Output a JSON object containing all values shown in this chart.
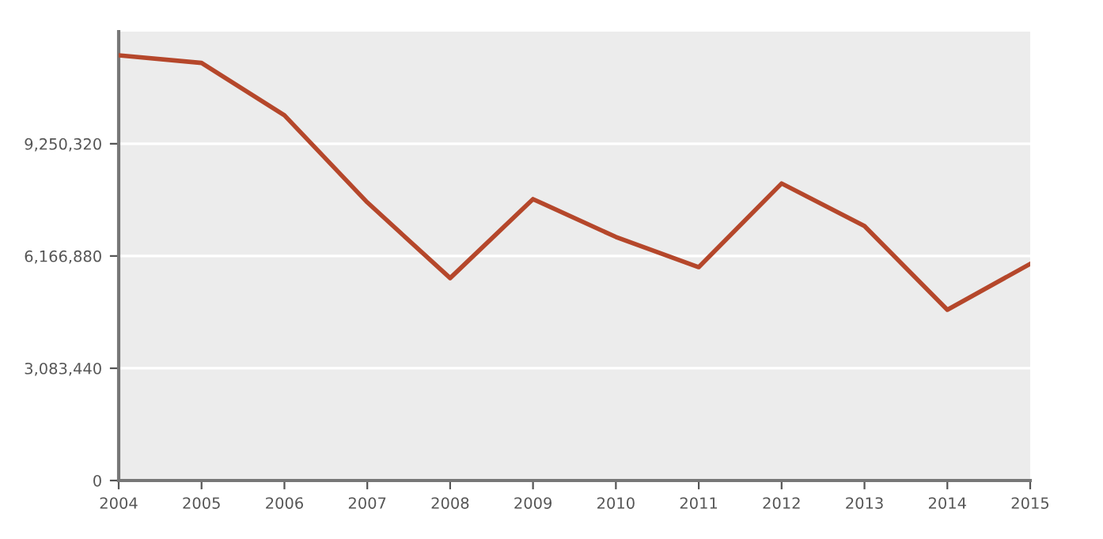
{
  "chart_data": {
    "type": "line",
    "x": [
      2004,
      2005,
      2006,
      2007,
      2008,
      2009,
      2010,
      2011,
      2012,
      2013,
      2014,
      2015
    ],
    "series": [
      {
        "color": "#b5472b",
        "values": [
          11680000,
          11470000,
          10030000,
          7640000,
          5560000,
          7730000,
          6690000,
          5860000,
          8160000,
          6990000,
          4690000,
          5950000
        ]
      }
    ],
    "xlim": [
      2004,
      2015
    ],
    "xticks": [
      2004,
      2005,
      2006,
      2007,
      2008,
      2009,
      2010,
      2011,
      2012,
      2013,
      2014,
      2015
    ],
    "ylim": [
      0,
      12330000
    ],
    "yticks": [
      {
        "value": 0,
        "label": "0"
      },
      {
        "value": 3083440,
        "label": "3,083,440"
      },
      {
        "value": 6166880,
        "label": "6,166,880"
      },
      {
        "value": 9250320,
        "label": "9,250,320"
      }
    ],
    "grid": "y",
    "marker": "none",
    "line_style": "solid"
  }
}
